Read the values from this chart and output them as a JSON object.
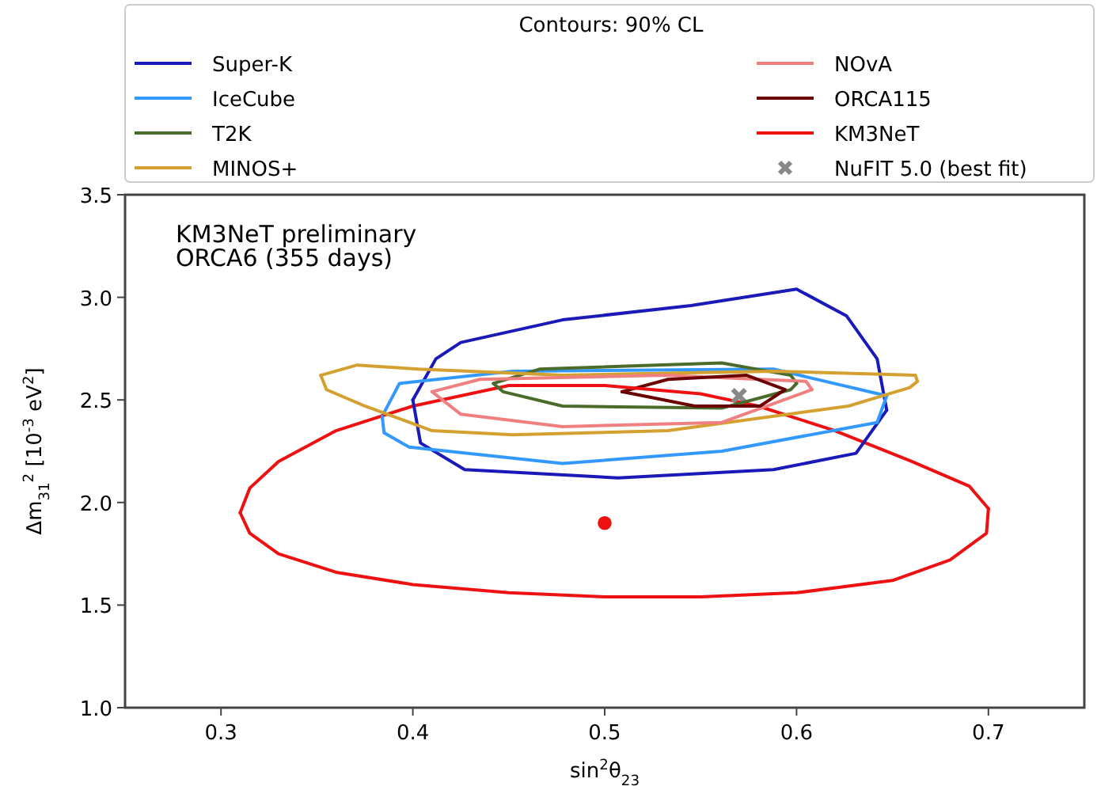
{
  "chart_data": {
    "type": "line",
    "xlabel": "sin$^{2}$θ$_{23}$",
    "ylabel": "Δm$_{31}$$^{2}$ [10$^{-3}$ eV$^{2}$]",
    "legend_title": "Contours: 90% CL",
    "legend": "top",
    "grid": false,
    "marker": "none",
    "line_style": "solid",
    "annotations": [
      "KM3NeT preliminary",
      "ORCA6 (355 days)"
    ],
    "xlim": [
      0.25,
      0.75
    ],
    "xticks": [
      0.3,
      0.4,
      0.5,
      0.6,
      0.7
    ],
    "ylim": [
      1,
      3.5
    ],
    "yticks": [
      {
        "value": 1,
        "label": "1.0"
      },
      1.5,
      {
        "value": 2,
        "label": "2.0"
      },
      2.5,
      {
        "value": 3,
        "label": "3.0"
      },
      3.5
    ],
    "series": [
      {
        "name": "Super-K",
        "color": "#1a1ab8",
        "x": [
          0.4,
          0.412,
          0.425,
          0.478,
          0.545,
          0.6,
          0.626,
          0.642,
          0.647
        ],
        "values": [
          2.5,
          2.7,
          2.78,
          2.89,
          2.96,
          3.04,
          2.91,
          2.7,
          2.45
        ]
      },
      {
        "name": "IceCube",
        "color": "#3399ff",
        "x": [
          0.384,
          0.393,
          0.452,
          0.588,
          0.647
        ],
        "values": [
          2.42,
          2.58,
          2.64,
          2.65,
          2.52
        ]
      },
      {
        "name": "T2K",
        "color": "#4a6b2a",
        "x": [
          0.442,
          0.466,
          0.561,
          0.597,
          0.6
        ],
        "values": [
          2.58,
          2.65,
          2.68,
          2.62,
          2.58
        ]
      },
      {
        "name": "MINOS+",
        "color": "#d4a030",
        "x": [
          0.352,
          0.371,
          0.403,
          0.478,
          0.588,
          0.662,
          0.663
        ],
        "values": [
          2.62,
          2.67,
          2.65,
          2.62,
          2.64,
          2.62,
          2.59
        ]
      },
      {
        "name": "NOvA",
        "color": "#f08080",
        "x": [
          0.41,
          0.435,
          0.531,
          0.605,
          0.608
        ],
        "values": [
          2.54,
          2.6,
          2.62,
          2.59,
          2.55
        ]
      },
      {
        "name": "ORCA115",
        "color": "#6b0000",
        "x": [
          0.509,
          0.533,
          0.574,
          0.594
        ],
        "values": [
          2.54,
          2.6,
          2.62,
          2.55
        ]
      },
      {
        "name": "KM3NeT",
        "color": "#ee1111",
        "x": [
          0.31,
          0.315,
          0.33,
          0.36,
          0.4,
          0.45,
          0.5,
          0.55,
          0.58,
          0.62,
          0.66,
          0.69,
          0.7
        ],
        "values": [
          1.95,
          2.07,
          2.2,
          2.35,
          2.47,
          2.57,
          2.57,
          2.53,
          2.47,
          2.35,
          2.2,
          2.08,
          1.97
        ]
      },
      {
        "name": "NuFIT 5.0 (best fit)",
        "type": "scatter",
        "marker": "cross",
        "color": "#888888",
        "x": [
          0.57
        ],
        "values": [
          2.52
        ]
      },
      {
        "type": "scatter",
        "marker": "circle",
        "color": "#ee1111",
        "x": [
          0.5
        ],
        "values": [
          1.9
        ]
      },
      {
        "color": "#1a1ab8",
        "x": [
          0.4,
          0.404,
          0.427,
          0.507,
          0.588,
          0.631,
          0.647
        ],
        "values": [
          2.5,
          2.29,
          2.16,
          2.12,
          2.16,
          2.24,
          2.45
        ]
      },
      {
        "color": "#3399ff",
        "x": [
          0.384,
          0.385,
          0.398,
          0.478,
          0.561,
          0.642,
          0.647
        ],
        "values": [
          2.42,
          2.34,
          2.27,
          2.19,
          2.25,
          2.39,
          2.52
        ]
      },
      {
        "color": "#4a6b2a",
        "x": [
          0.442,
          0.447,
          0.478,
          0.561,
          0.597,
          0.6
        ],
        "values": [
          2.58,
          2.54,
          2.47,
          2.46,
          2.55,
          2.58
        ]
      },
      {
        "color": "#d4a030",
        "x": [
          0.352,
          0.355,
          0.375,
          0.41,
          0.452,
          0.533,
          0.627,
          0.659,
          0.663
        ],
        "values": [
          2.62,
          2.55,
          2.47,
          2.35,
          2.33,
          2.35,
          2.47,
          2.56,
          2.59
        ]
      },
      {
        "color": "#f08080",
        "x": [
          0.41,
          0.425,
          0.478,
          0.561,
          0.608
        ],
        "values": [
          2.54,
          2.43,
          2.37,
          2.39,
          2.55
        ]
      },
      {
        "color": "#6b0000",
        "x": [
          0.509,
          0.547,
          0.581,
          0.594
        ],
        "values": [
          2.54,
          2.47,
          2.47,
          2.55
        ]
      },
      {
        "color": "#ee1111",
        "x": [
          0.31,
          0.315,
          0.33,
          0.36,
          0.4,
          0.45,
          0.5,
          0.55,
          0.6,
          0.65,
          0.68,
          0.699,
          0.7
        ],
        "values": [
          1.95,
          1.85,
          1.75,
          1.66,
          1.6,
          1.56,
          1.54,
          1.54,
          1.56,
          1.62,
          1.72,
          1.85,
          1.97
        ]
      }
    ]
  }
}
